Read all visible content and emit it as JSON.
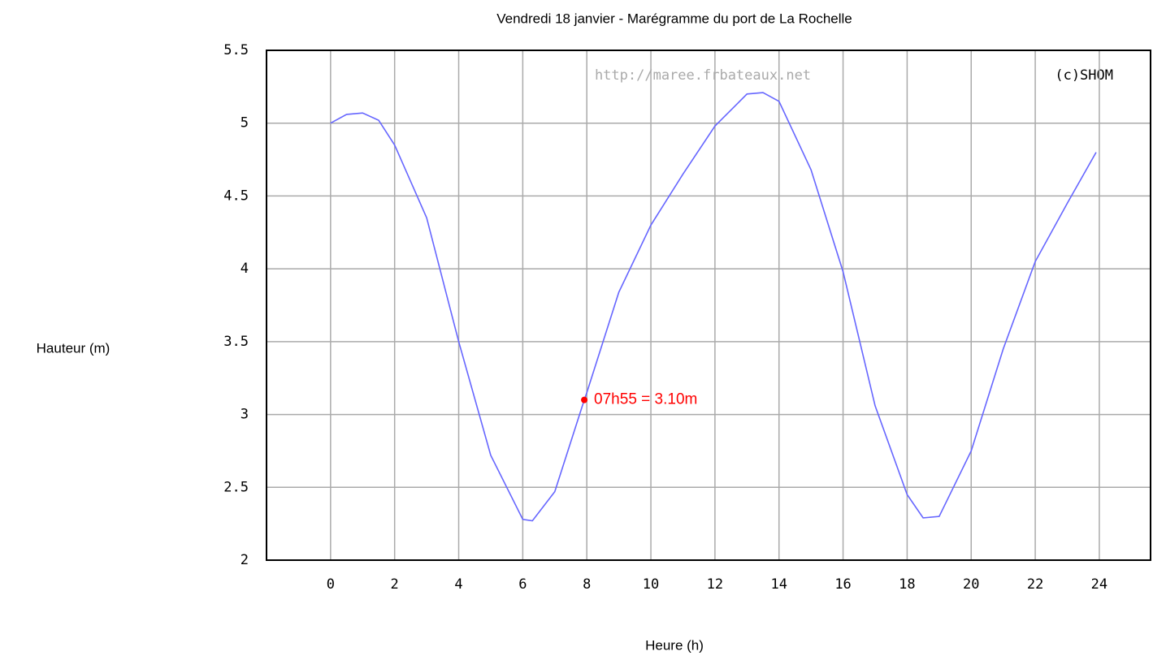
{
  "chart_data": {
    "type": "line",
    "title": "Vendredi 18 janvier - Marégramme du port de La Rochelle",
    "xlabel": "Heure (h)",
    "ylabel": "Hauteur (m)",
    "watermark": "http://maree.frbateaux.net",
    "credit": "(c)SHOM",
    "x": [
      0,
      0.5,
      1,
      1.5,
      2,
      3,
      4,
      5,
      6,
      6.3,
      7,
      7.92,
      8,
      9,
      10,
      11,
      12,
      13,
      13.5,
      14,
      15,
      16,
      17,
      18,
      18.5,
      19,
      20,
      21,
      22,
      23,
      23.9
    ],
    "series": [
      {
        "color": "#6666ff",
        "values": [
          5.0,
          5.06,
          5.07,
          5.02,
          4.85,
          4.35,
          3.5,
          2.72,
          2.28,
          2.27,
          2.47,
          3.1,
          3.15,
          3.84,
          4.3,
          4.65,
          4.98,
          5.2,
          5.21,
          5.15,
          4.68,
          3.98,
          3.06,
          2.45,
          2.29,
          2.3,
          2.75,
          3.45,
          4.05,
          4.45,
          4.8
        ]
      }
    ],
    "marker": {
      "x": 7.92,
      "y": 3.1,
      "label": "07h55 = 3.10m",
      "color": "#ff0000"
    },
    "xlim": [
      -2,
      25.6
    ],
    "ylim": [
      2,
      5.5
    ],
    "xticks": [
      0,
      2,
      4,
      6,
      8,
      10,
      12,
      14,
      16,
      18,
      20,
      22,
      24
    ],
    "yticks": [
      2,
      2.5,
      3,
      3.5,
      4,
      4.5,
      5,
      5.5
    ],
    "grid": true
  }
}
